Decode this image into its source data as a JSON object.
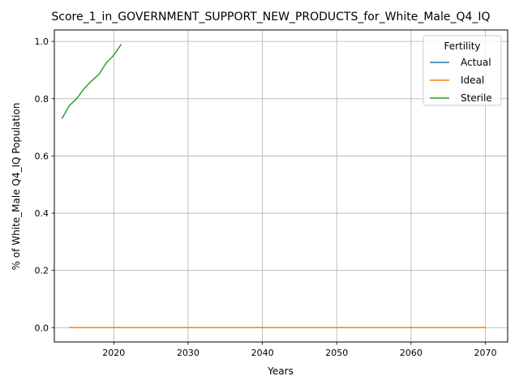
{
  "chart_data": {
    "type": "line",
    "title": "Score_1_in_GOVERNMENT_SUPPORT_NEW_PRODUCTS_for_White_Male_Q4_IQ",
    "xlabel": "Years",
    "ylabel": "% of White_Male Q4_IQ Population",
    "xlim": [
      2012,
      2073
    ],
    "ylim": [
      -0.05,
      1.04
    ],
    "xticks": [
      2020,
      2030,
      2040,
      2050,
      2060,
      2070
    ],
    "xtick_labels": [
      "2020",
      "2030",
      "2040",
      "2050",
      "2060",
      "2070"
    ],
    "yticks": [
      0.0,
      0.2,
      0.4,
      0.6,
      0.8,
      1.0
    ],
    "ytick_labels": [
      "0.0",
      "0.2",
      "0.4",
      "0.6",
      "0.8",
      "1.0"
    ],
    "grid": true,
    "legend": {
      "title": "Fertility",
      "placement": "top-right"
    },
    "series": [
      {
        "name": "Actual",
        "color": "#1f77b4",
        "x": [
          2014,
          2020,
          2025,
          2030,
          2035,
          2040,
          2045,
          2050,
          2055,
          2060,
          2065,
          2070
        ],
        "y": [
          0,
          0,
          0,
          0,
          0,
          0,
          0,
          0,
          0,
          0,
          0,
          0
        ]
      },
      {
        "name": "Ideal",
        "color": "#ff7f0e",
        "x": [
          2014,
          2020,
          2025,
          2030,
          2035,
          2040,
          2045,
          2050,
          2055,
          2060,
          2065,
          2070
        ],
        "y": [
          0,
          0,
          0,
          0,
          0,
          0,
          0,
          0,
          0,
          0,
          0,
          0
        ]
      },
      {
        "name": "Sterile",
        "color": "#2ca02c",
        "x": [
          2013,
          2014,
          2015,
          2016,
          2017,
          2018,
          2019,
          2020,
          2021
        ],
        "y": [
          0.73,
          0.775,
          0.8,
          0.835,
          0.862,
          0.885,
          0.925,
          0.952,
          0.99
        ]
      }
    ]
  }
}
